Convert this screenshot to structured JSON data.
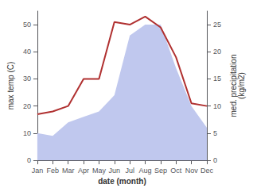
{
  "chart_data": {
    "type": "line",
    "xlabel": "date (month)",
    "ylabel": "max temp (C)",
    "y2label": "med. precipitation\n(kg/m2)",
    "categories": [
      "Jan",
      "Feb",
      "Mar",
      "Apr",
      "May",
      "Jun",
      "Jul",
      "Aug",
      "Sep",
      "Oct",
      "Nov",
      "Dec"
    ],
    "series": [
      {
        "type": "area",
        "color": "#c0c8ee",
        "axis": "y2",
        "values": [
          5,
          4.5,
          7,
          8,
          9,
          12,
          23,
          25,
          25,
          17,
          10,
          6
        ]
      },
      {
        "type": "line",
        "color": "#b03030",
        "values": [
          17,
          18,
          20,
          30,
          30,
          51,
          50,
          53,
          49,
          38,
          21,
          20
        ]
      }
    ],
    "ylim": [
      0,
      55
    ],
    "yticks": [
      0,
      10,
      20,
      30,
      40,
      50
    ],
    "y2lim": [
      0,
      27.5
    ],
    "y2ticks": [
      0,
      5,
      10,
      15,
      20,
      25
    ],
    "grid": false
  }
}
